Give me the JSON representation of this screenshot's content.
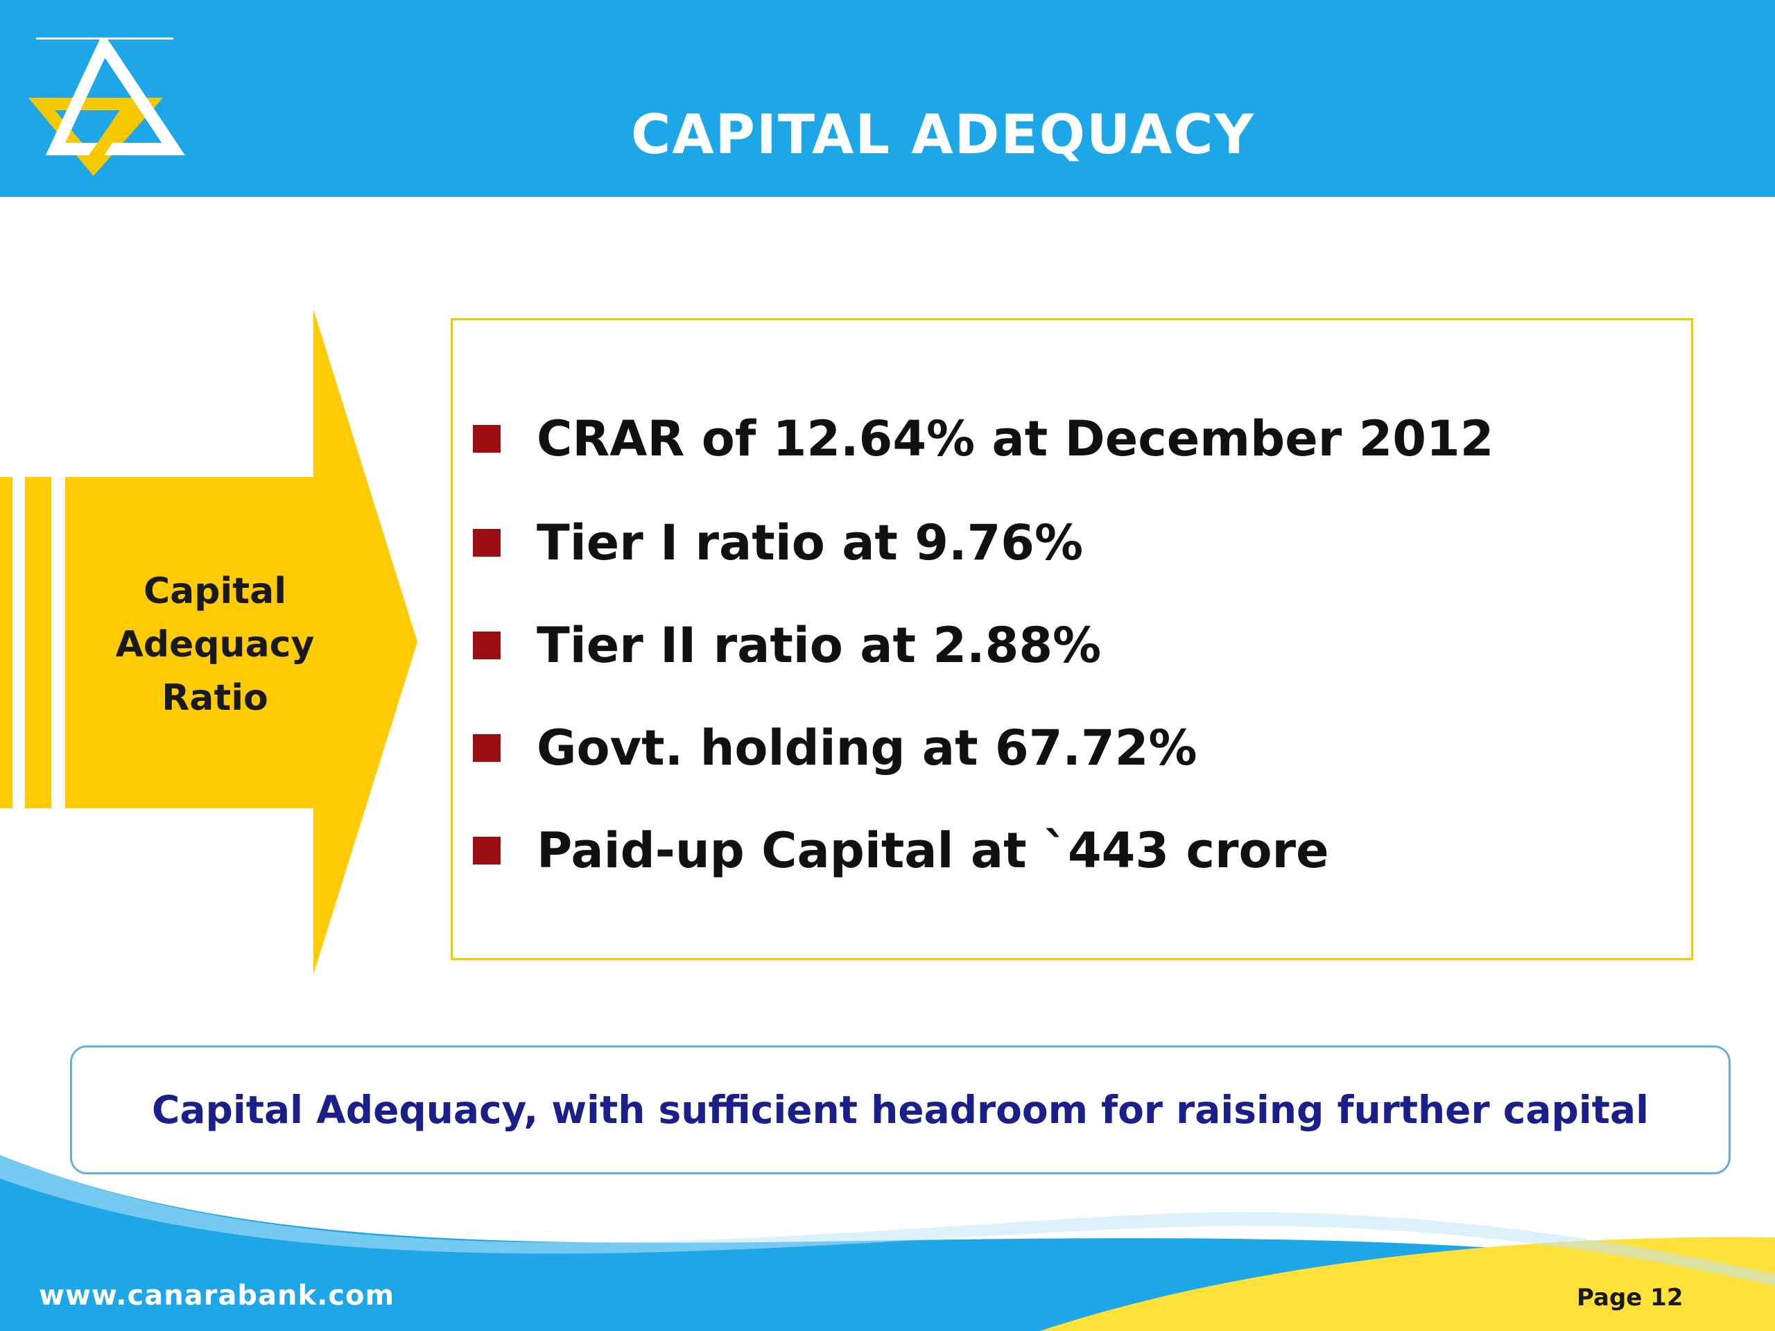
{
  "header": {
    "title": "CAPITAL ADEQUACY",
    "logo_icon": "canara-bank-logo-icon"
  },
  "arrow": {
    "label_lines": [
      "Capital",
      "Adequacy",
      "Ratio"
    ]
  },
  "bullets": [
    "CRAR of 12.64% at December 2012",
    "Tier I ratio at 9.76%",
    "Tier II ratio at 2.88%",
    "Govt. holding at 67.72%",
    "Paid-up Capital at `443 crore"
  ],
  "callout": {
    "text": "Capital Adequacy, with sufficient headroom for raising further capital"
  },
  "footer": {
    "website": "www.canarabank.com",
    "page_label": "Page  12"
  },
  "colors": {
    "header_blue": "#1ea7e8",
    "arrow_yellow": "#ffcb05",
    "bullet_red": "#9b0d11",
    "callout_text": "#1b1f8a"
  }
}
